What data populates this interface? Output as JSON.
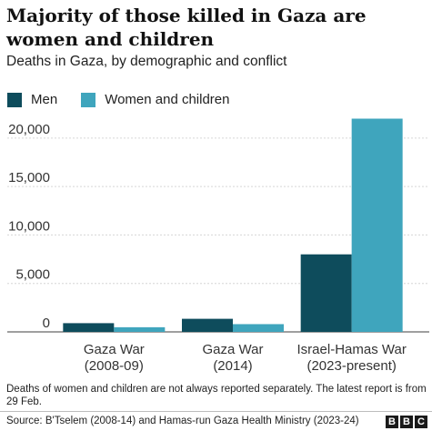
{
  "title": "Majority of those killed in Gaza are women and children",
  "subtitle": "Deaths in Gaza, by demographic and conflict",
  "legend": [
    {
      "label": "Men",
      "color": "#0e4c5c"
    },
    {
      "label": "Women and children",
      "color": "#3fa5bd"
    }
  ],
  "chart_data": {
    "type": "bar",
    "categories": [
      [
        "Gaza War",
        "(2008-09)"
      ],
      [
        "Gaza War",
        "(2014)"
      ],
      [
        "Israel-Hamas War",
        "(2023-present)"
      ]
    ],
    "series": [
      {
        "name": "Men",
        "values": [
          900,
          1350,
          8000
        ],
        "color": "#0e4c5c"
      },
      {
        "name": "Women and children",
        "values": [
          480,
          800,
          22000
        ],
        "color": "#3fa5bd"
      }
    ],
    "ylim": [
      0,
      22000
    ],
    "yticks": [
      0,
      5000,
      10000,
      15000,
      20000
    ],
    "ytick_labels": [
      "0",
      "5,000",
      "10,000",
      "15,000",
      "20,000"
    ],
    "grid": true
  },
  "footnote": "Deaths of women and children are not always reported separately. The latest report is from 29 Feb.",
  "source": "Source: B'Tselem (2008-14) and Hamas-run Gaza Health Ministry (2023-24)",
  "logo": [
    "B",
    "B",
    "C"
  ]
}
